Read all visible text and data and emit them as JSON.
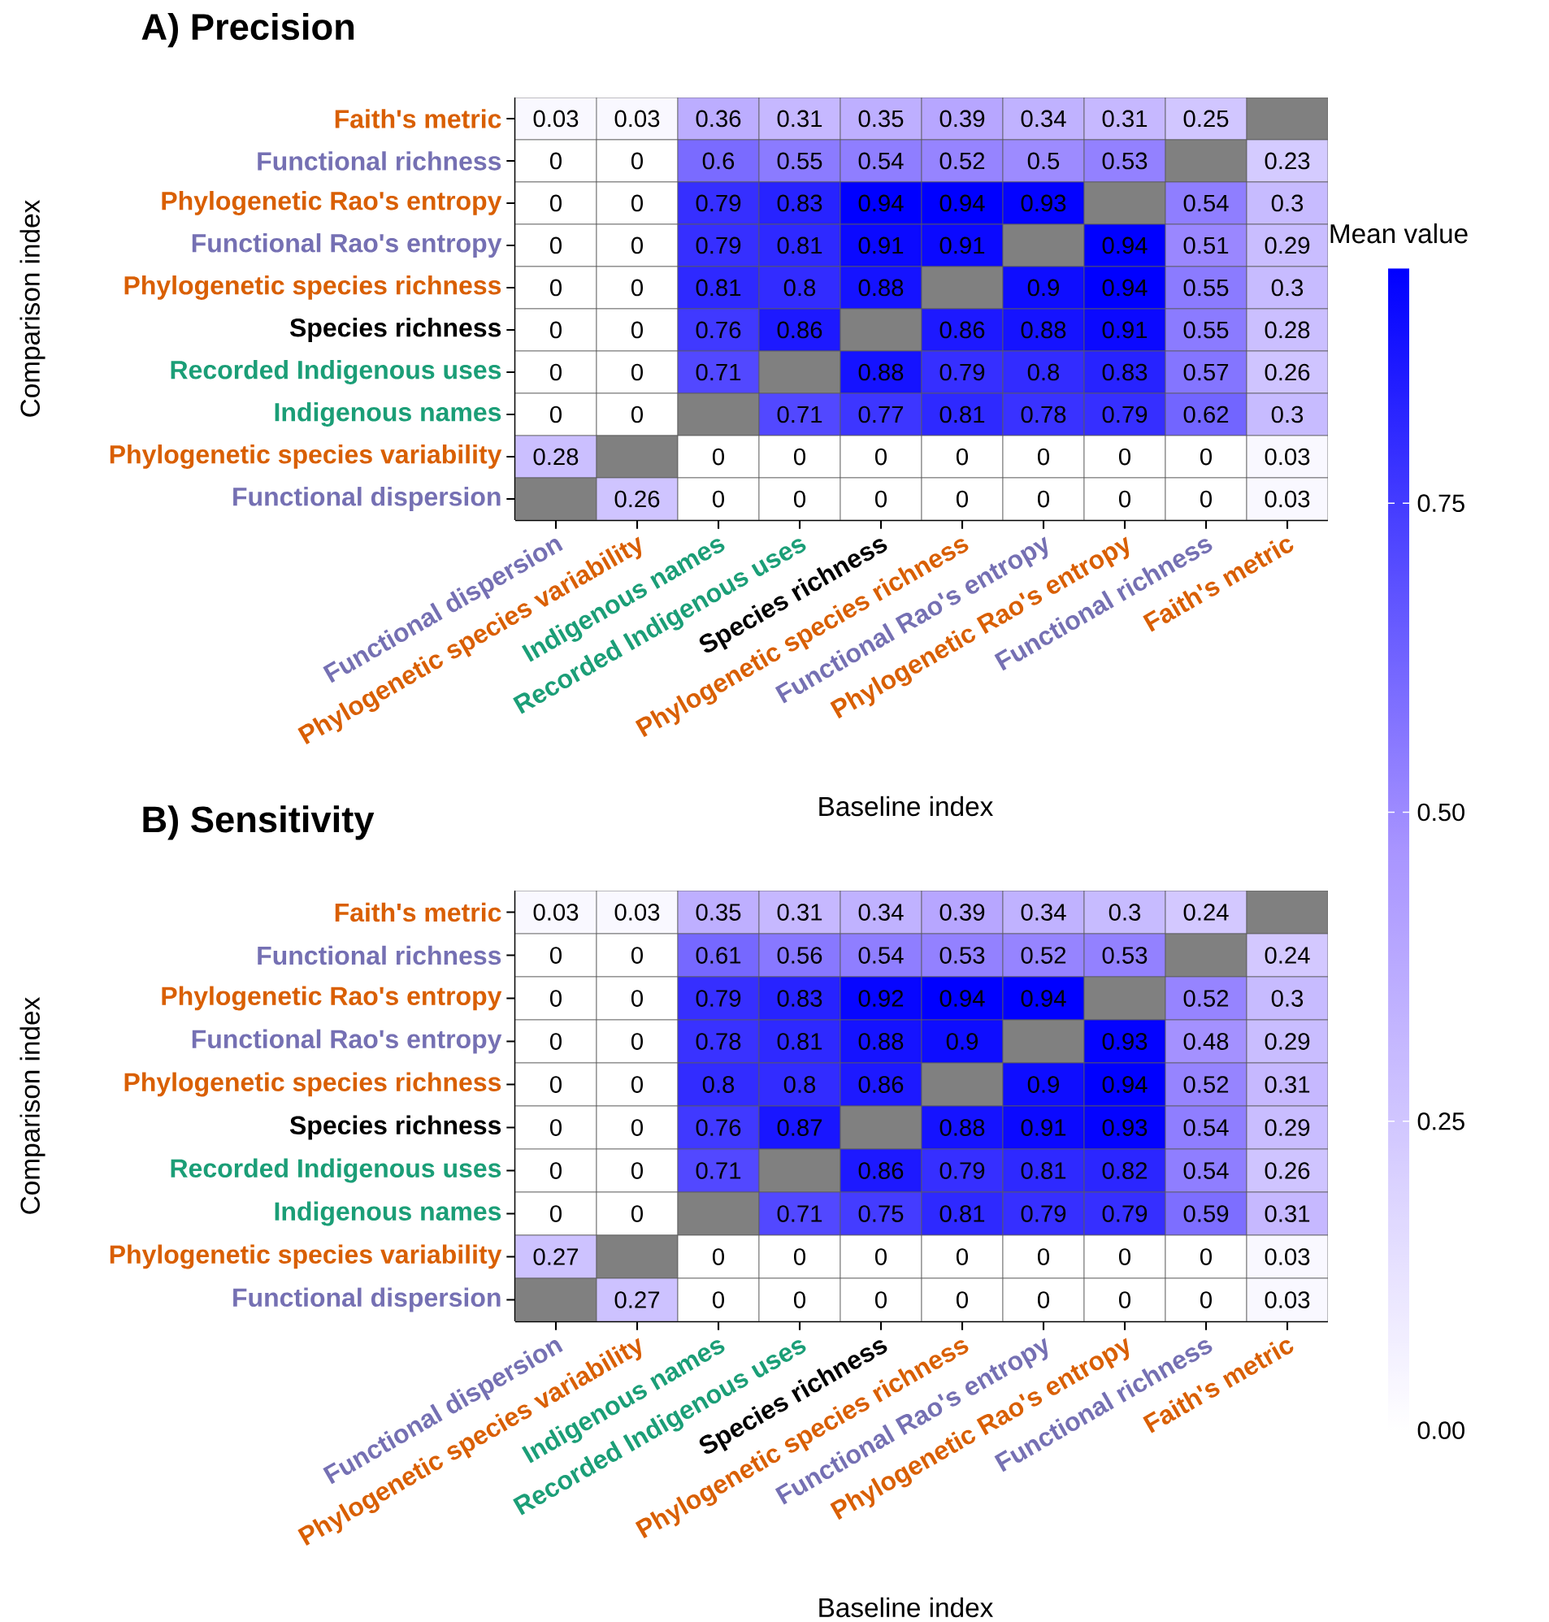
{
  "chart_data": [
    {
      "type": "heatmap",
      "title": "A) Precision",
      "xlabel": "Baseline index",
      "ylabel": "Comparison index",
      "categories": [
        "Functional dispersion",
        "Phylogenetic species variability",
        "Indigenous names",
        "Recorded Indigenous uses",
        "Species richness",
        "Phylogenetic species richness",
        "Functional Rao's entropy",
        "Phylogenetic Rao's entropy",
        "Functional richness",
        "Faith's metric"
      ],
      "y_categories": [
        "Faith's metric",
        "Functional richness",
        "Phylogenetic Rao's entropy",
        "Functional Rao's entropy",
        "Phylogenetic species richness",
        "Species richness",
        "Recorded Indigenous uses",
        "Indigenous names",
        "Phylogenetic species variability",
        "Functional dispersion"
      ],
      "cells": [
        [
          0.03,
          0.03,
          0.36,
          0.31,
          0.35,
          0.39,
          0.34,
          0.31,
          0.25,
          null
        ],
        [
          0,
          0,
          0.6,
          0.55,
          0.54,
          0.52,
          0.5,
          0.53,
          null,
          0.23
        ],
        [
          0,
          0,
          0.79,
          0.83,
          0.94,
          0.94,
          0.93,
          null,
          0.54,
          0.3
        ],
        [
          0,
          0,
          0.79,
          0.81,
          0.91,
          0.91,
          null,
          0.94,
          0.51,
          0.29
        ],
        [
          0,
          0,
          0.81,
          0.8,
          0.88,
          null,
          0.9,
          0.94,
          0.55,
          0.3
        ],
        [
          0,
          0,
          0.76,
          0.86,
          null,
          0.86,
          0.88,
          0.91,
          0.55,
          0.28
        ],
        [
          0,
          0,
          0.71,
          null,
          0.88,
          0.79,
          0.8,
          0.83,
          0.57,
          0.26
        ],
        [
          0,
          0,
          null,
          0.71,
          0.77,
          0.81,
          0.78,
          0.79,
          0.62,
          0.3
        ],
        [
          0.28,
          null,
          0,
          0,
          0,
          0,
          0,
          0,
          0,
          0.03
        ],
        [
          null,
          0.26,
          0,
          0,
          0,
          0,
          0,
          0,
          0,
          0.03
        ]
      ],
      "data_labels": true
    },
    {
      "type": "heatmap",
      "title": "B) Sensitivity",
      "xlabel": "Baseline index",
      "ylabel": "Comparison index",
      "categories": [
        "Functional dispersion",
        "Phylogenetic species variability",
        "Indigenous names",
        "Recorded Indigenous uses",
        "Species richness",
        "Phylogenetic species richness",
        "Functional Rao's entropy",
        "Phylogenetic Rao's entropy",
        "Functional richness",
        "Faith's metric"
      ],
      "y_categories": [
        "Faith's metric",
        "Functional richness",
        "Phylogenetic Rao's entropy",
        "Functional Rao's entropy",
        "Phylogenetic species richness",
        "Species richness",
        "Recorded Indigenous uses",
        "Indigenous names",
        "Phylogenetic species variability",
        "Functional dispersion"
      ],
      "cells": [
        [
          0.03,
          0.03,
          0.35,
          0.31,
          0.34,
          0.39,
          0.34,
          0.3,
          0.24,
          null
        ],
        [
          0,
          0,
          0.61,
          0.56,
          0.54,
          0.53,
          0.52,
          0.53,
          null,
          0.24
        ],
        [
          0,
          0,
          0.79,
          0.83,
          0.92,
          0.94,
          0.94,
          null,
          0.52,
          0.3
        ],
        [
          0,
          0,
          0.78,
          0.81,
          0.88,
          0.9,
          null,
          0.93,
          0.48,
          0.29
        ],
        [
          0,
          0,
          0.8,
          0.8,
          0.86,
          null,
          0.9,
          0.94,
          0.52,
          0.31
        ],
        [
          0,
          0,
          0.76,
          0.87,
          null,
          0.88,
          0.91,
          0.93,
          0.54,
          0.29
        ],
        [
          0,
          0,
          0.71,
          null,
          0.86,
          0.79,
          0.81,
          0.82,
          0.54,
          0.26
        ],
        [
          0,
          0,
          null,
          0.71,
          0.75,
          0.81,
          0.79,
          0.79,
          0.59,
          0.31
        ],
        [
          0.27,
          null,
          0,
          0,
          0,
          0,
          0,
          0,
          0,
          0.03
        ],
        [
          null,
          0.27,
          0,
          0,
          0,
          0,
          0,
          0,
          0,
          0.03
        ]
      ],
      "clim": [
        0,
        0.94
      ],
      "data_labels": true,
      "clabel": "Mean value",
      "cticks": [
        {
          "value": 0,
          "label": "0.00"
        },
        {
          "value": 0.25,
          "label": "0.25"
        },
        {
          "value": 0.5,
          "label": "0.50"
        },
        {
          "value": 0.75,
          "label": "0.75"
        }
      ]
    }
  ]
}
